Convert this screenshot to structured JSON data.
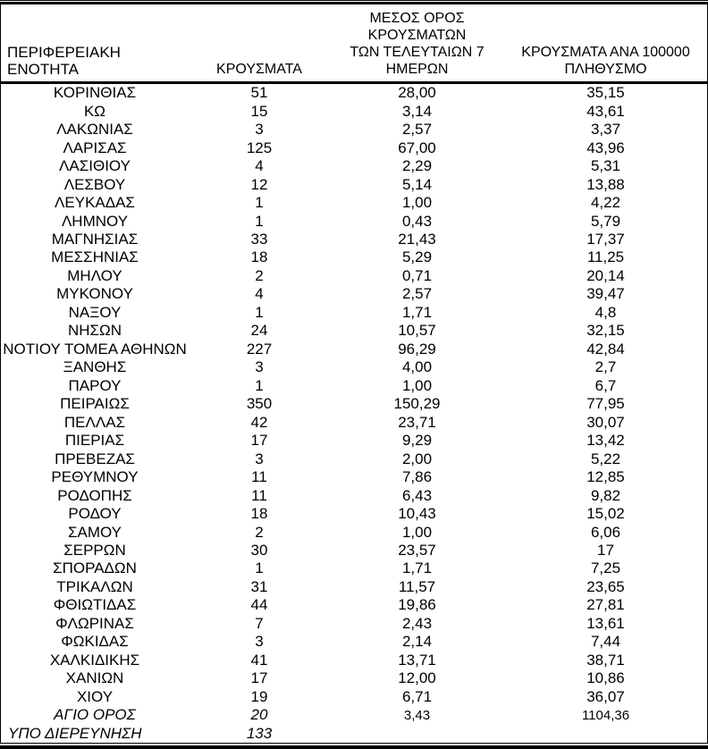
{
  "table": {
    "columns": {
      "region": "ΠΕΡΙΦΕΡΕΙΑΚΗ ΕΝΟΤΗΤΑ",
      "cases": "ΚΡΟΥΣΜΑΤΑ",
      "avg7": "ΜΕΣΟΣ ΟΡΟΣ ΚΡΟΥΣΜΑΤΩΝ\nΤΩΝ ΤΕΛΕΥΤΑΙΩΝ 7\nΗΜΕΡΩΝ",
      "per100k": "ΚΡΟΥΣΜΑΤΑ ΑΝΑ 100000\nΠΛΗΘΥΣΜΟ"
    },
    "rows": [
      {
        "region": "ΚΟΡΙΝΘΙΑΣ",
        "cases": "51",
        "avg7": "28,00",
        "per100k": "35,15"
      },
      {
        "region": "ΚΩ",
        "cases": "15",
        "avg7": "3,14",
        "per100k": "43,61"
      },
      {
        "region": "ΛΑΚΩΝΙΑΣ",
        "cases": "3",
        "avg7": "2,57",
        "per100k": "3,37"
      },
      {
        "region": "ΛΑΡΙΣΑΣ",
        "cases": "125",
        "avg7": "67,00",
        "per100k": "43,96"
      },
      {
        "region": "ΛΑΣΙΘΙΟΥ",
        "cases": "4",
        "avg7": "2,29",
        "per100k": "5,31"
      },
      {
        "region": "ΛΕΣΒΟΥ",
        "cases": "12",
        "avg7": "5,14",
        "per100k": "13,88"
      },
      {
        "region": "ΛΕΥΚΑΔΑΣ",
        "cases": "1",
        "avg7": "1,00",
        "per100k": "4,22"
      },
      {
        "region": "ΛΗΜΝΟΥ",
        "cases": "1",
        "avg7": "0,43",
        "per100k": "5,79"
      },
      {
        "region": "ΜΑΓΝΗΣΙΑΣ",
        "cases": "33",
        "avg7": "21,43",
        "per100k": "17,37"
      },
      {
        "region": "ΜΕΣΣΗΝΙΑΣ",
        "cases": "18",
        "avg7": "5,29",
        "per100k": "11,25"
      },
      {
        "region": "ΜΗΛΟΥ",
        "cases": "2",
        "avg7": "0,71",
        "per100k": "20,14"
      },
      {
        "region": "ΜΥΚΟΝΟΥ",
        "cases": "4",
        "avg7": "2,57",
        "per100k": "39,47"
      },
      {
        "region": "ΝΑΞΟΥ",
        "cases": "1",
        "avg7": "1,71",
        "per100k": "4,8"
      },
      {
        "region": "ΝΗΣΩΝ",
        "cases": "24",
        "avg7": "10,57",
        "per100k": "32,15"
      },
      {
        "region": "ΝΟΤΙΟΥ ΤΟΜΕΑ ΑΘΗΝΩΝ",
        "cases": "227",
        "avg7": "96,29",
        "per100k": "42,84"
      },
      {
        "region": "ΞΑΝΘΗΣ",
        "cases": "3",
        "avg7": "4,00",
        "per100k": "2,7"
      },
      {
        "region": "ΠΑΡΟΥ",
        "cases": "1",
        "avg7": "1,00",
        "per100k": "6,7"
      },
      {
        "region": "ΠΕΙΡΑΙΩΣ",
        "cases": "350",
        "avg7": "150,29",
        "per100k": "77,95"
      },
      {
        "region": "ΠΕΛΛΑΣ",
        "cases": "42",
        "avg7": "23,71",
        "per100k": "30,07"
      },
      {
        "region": "ΠΙΕΡΙΑΣ",
        "cases": "17",
        "avg7": "9,29",
        "per100k": "13,42"
      },
      {
        "region": "ΠΡΕΒΕΖΑΣ",
        "cases": "3",
        "avg7": "2,00",
        "per100k": "5,22"
      },
      {
        "region": "ΡΕΘΥΜΝΟΥ",
        "cases": "11",
        "avg7": "7,86",
        "per100k": "12,85"
      },
      {
        "region": "ΡΟΔΟΠΗΣ",
        "cases": "11",
        "avg7": "6,43",
        "per100k": "9,82"
      },
      {
        "region": "ΡΟΔΟΥ",
        "cases": "18",
        "avg7": "10,43",
        "per100k": "15,02"
      },
      {
        "region": "ΣΑΜΟΥ",
        "cases": "2",
        "avg7": "1,00",
        "per100k": "6,06"
      },
      {
        "region": "ΣΕΡΡΩΝ",
        "cases": "30",
        "avg7": "23,57",
        "per100k": "17"
      },
      {
        "region": "ΣΠΟΡΑΔΩΝ",
        "cases": "1",
        "avg7": "1,71",
        "per100k": "7,25"
      },
      {
        "region": "ΤΡΙΚΑΛΩΝ",
        "cases": "31",
        "avg7": "11,57",
        "per100k": "23,65"
      },
      {
        "region": "ΦΘΙΩΤΙΔΑΣ",
        "cases": "44",
        "avg7": "19,86",
        "per100k": "27,81"
      },
      {
        "region": "ΦΛΩΡΙΝΑΣ",
        "cases": "7",
        "avg7": "2,43",
        "per100k": "13,61"
      },
      {
        "region": "ΦΩΚΙΔΑΣ",
        "cases": "3",
        "avg7": "2,14",
        "per100k": "7,44"
      },
      {
        "region": "ΧΑΛΚΙΔΙΚΗΣ",
        "cases": "41",
        "avg7": "13,71",
        "per100k": "38,71"
      },
      {
        "region": "ΧΑΝΙΩΝ",
        "cases": "17",
        "avg7": "12,00",
        "per100k": "10,86"
      },
      {
        "region": "ΧΙΟΥ",
        "cases": "19",
        "avg7": "6,71",
        "per100k": "36,07"
      },
      {
        "region": "ΑΓΙΟ ΟΡΟΣ",
        "cases": "20",
        "avg7": "3,43",
        "per100k": "1104,36",
        "italic": true,
        "alt_font": true
      },
      {
        "region": "ΥΠΟ ΔΙΕΡΕΥΝΗΣΗ",
        "cases": "133",
        "avg7": "",
        "per100k": "",
        "italic": true,
        "align": "left"
      }
    ]
  },
  "colors": {
    "border": "#000000",
    "text": "#000000",
    "background": "#ffffff"
  }
}
